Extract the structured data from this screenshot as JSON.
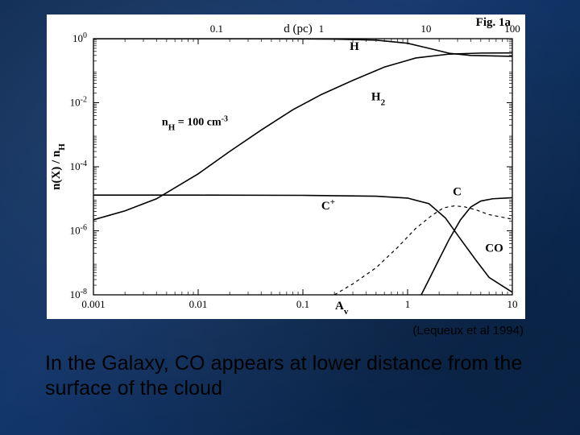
{
  "slide": {
    "background_gradient": [
      "#0c2a52",
      "#13366b",
      "#0e2f5c",
      "#0a274e"
    ]
  },
  "citation": "(Lequeux et al 1994)",
  "caption": "In the Galaxy, CO appears at lower distance from the surface of the cloud",
  "chart": {
    "type": "line",
    "figure_label": "Fig. 1a",
    "background_color": "#ffffff",
    "axis_color": "#000000",
    "line_color": "#000000",
    "line_width": 1.6,
    "dash_line_width": 1.2,
    "dash_pattern": "4 4",
    "bottom_axis": {
      "label": "A",
      "label_sub": "v",
      "scale": "log",
      "min": 0.001,
      "max": 10,
      "ticks": [
        {
          "v": 0.001,
          "label": "0.001"
        },
        {
          "v": 0.01,
          "label": "0.01"
        },
        {
          "v": 0.1,
          "label": "0.1"
        },
        {
          "v": 1,
          "label": "1"
        },
        {
          "v": 10,
          "label": "10"
        }
      ]
    },
    "top_axis": {
      "label": "d  (pc)",
      "scale": "log",
      "ticks": [
        {
          "v": 0.0015,
          "label": ""
        },
        {
          "v": 0.015,
          "label": "0.1"
        },
        {
          "v": 0.15,
          "label": "1"
        },
        {
          "v": 1.5,
          "label": "10"
        },
        {
          "v": 10,
          "label": "100"
        }
      ]
    },
    "y_axis": {
      "label_main": "n(X) / n",
      "label_sub": "H",
      "scale": "log",
      "min": 1e-08,
      "max": 1,
      "ticks": [
        {
          "v": 1e-08,
          "label_base": "10",
          "label_exp": "-8"
        },
        {
          "v": 1e-06,
          "label_base": "10",
          "label_exp": "-6"
        },
        {
          "v": 0.0001,
          "label_base": "10",
          "label_exp": "-4"
        },
        {
          "v": 0.01,
          "label_base": "10",
          "label_exp": "-2"
        },
        {
          "v": 1,
          "label_base": "10",
          "label_exp": "0"
        }
      ]
    },
    "annotations": {
      "nH_text_1": "n",
      "nH_sub": "H",
      "nH_text_2": " = 100 cm",
      "nH_sup": "-3"
    },
    "series_labels": {
      "H": "H",
      "H2": "H",
      "H2_sub": "2",
      "Cplus": "C",
      "Cplus_sup": "+",
      "C": "C",
      "CO": "CO"
    },
    "series": {
      "H": [
        {
          "x": 0.001,
          "y": 0.999
        },
        {
          "x": 0.05,
          "y": 0.995
        },
        {
          "x": 0.2,
          "y": 0.97
        },
        {
          "x": 0.5,
          "y": 0.9
        },
        {
          "x": 1.0,
          "y": 0.72
        },
        {
          "x": 1.6,
          "y": 0.5
        },
        {
          "x": 2.5,
          "y": 0.35
        },
        {
          "x": 4.0,
          "y": 0.3
        },
        {
          "x": 10,
          "y": 0.28
        }
      ],
      "H2": [
        {
          "x": 0.001,
          "y": 2.2e-06
        },
        {
          "x": 0.002,
          "y": 4.2e-06
        },
        {
          "x": 0.004,
          "y": 1e-05
        },
        {
          "x": 0.01,
          "y": 6e-05
        },
        {
          "x": 0.02,
          "y": 0.0003
        },
        {
          "x": 0.04,
          "y": 0.0014
        },
        {
          "x": 0.08,
          "y": 0.006
        },
        {
          "x": 0.15,
          "y": 0.018
        },
        {
          "x": 0.3,
          "y": 0.05
        },
        {
          "x": 0.6,
          "y": 0.13
        },
        {
          "x": 1.2,
          "y": 0.25
        },
        {
          "x": 2.5,
          "y": 0.33
        },
        {
          "x": 5,
          "y": 0.355
        },
        {
          "x": 10,
          "y": 0.36
        }
      ],
      "Cplus": [
        {
          "x": 0.001,
          "y": 1.3e-05
        },
        {
          "x": 0.01,
          "y": 1.3e-05
        },
        {
          "x": 0.1,
          "y": 1.28e-05
        },
        {
          "x": 0.5,
          "y": 1.2e-05
        },
        {
          "x": 1.0,
          "y": 1.05e-05
        },
        {
          "x": 1.6,
          "y": 7e-06
        },
        {
          "x": 2.3,
          "y": 2.5e-06
        },
        {
          "x": 3.2,
          "y": 5.5e-07
        },
        {
          "x": 4.5,
          "y": 1.2e-07
        },
        {
          "x": 6.0,
          "y": 3.5e-08
        },
        {
          "x": 10,
          "y": 1.2e-08
        }
      ],
      "C": [
        {
          "x": 0.2,
          "y": 1e-08
        },
        {
          "x": 0.3,
          "y": 2.2e-08
        },
        {
          "x": 0.5,
          "y": 7e-08
        },
        {
          "x": 0.8,
          "y": 3e-07
        },
        {
          "x": 1.2,
          "y": 1.2e-06
        },
        {
          "x": 1.7,
          "y": 3e-06
        },
        {
          "x": 2.2,
          "y": 5.2e-06
        },
        {
          "x": 2.8,
          "y": 6e-06
        },
        {
          "x": 3.5,
          "y": 5.6e-06
        },
        {
          "x": 4.5,
          "y": 4.5e-06
        },
        {
          "x": 6.0,
          "y": 3.2e-06
        },
        {
          "x": 10,
          "y": 2.3e-06
        }
      ],
      "CO": [
        {
          "x": 1.35,
          "y": 1e-08
        },
        {
          "x": 1.6,
          "y": 3e-08
        },
        {
          "x": 2.0,
          "y": 1.3e-07
        },
        {
          "x": 2.5,
          "y": 5.5e-07
        },
        {
          "x": 3.2,
          "y": 2.2e-06
        },
        {
          "x": 4.0,
          "y": 5.5e-06
        },
        {
          "x": 5.0,
          "y": 8.5e-06
        },
        {
          "x": 6.5,
          "y": 1e-05
        },
        {
          "x": 10,
          "y": 1.08e-05
        }
      ]
    }
  }
}
